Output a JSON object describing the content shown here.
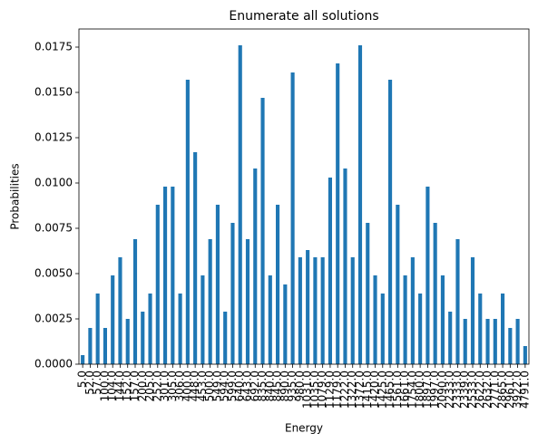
{
  "chart_data": {
    "type": "bar",
    "title": "Enumerate all solutions",
    "xlabel": "Energy",
    "ylabel": "Probabilities",
    "categories": [
      "5.0",
      "52.0",
      "57.0",
      "100.0",
      "104.0",
      "144.0",
      "152.0",
      "157.0",
      "200.0",
      "205.0",
      "252.0",
      "301.0",
      "305.0",
      "306.0",
      "400.0",
      "448.0",
      "453.0",
      "500.0",
      "549.0",
      "594.0",
      "599.0",
      "640.0",
      "643.0",
      "692.0",
      "835.0",
      "840.0",
      "845.0",
      "890.0",
      "935.0",
      "980.0",
      "1031.0",
      "1035.0",
      "1079.0",
      "1129.0",
      "1179.0",
      "1222.0",
      "1322.0",
      "1372.0",
      "1415.0",
      "1420.0",
      "1425.0",
      "1465.0",
      "1561.0",
      "1661.0",
      "1754.0",
      "1800.0",
      "1897.0",
      "1997.0",
      "2090.0",
      "2233.0",
      "2333.0",
      "2339.0",
      "2533.0",
      "2622.0",
      "2632.0",
      "2771.0",
      "2865.0",
      "2961.0",
      "3922.0",
      "4791.0"
    ],
    "values": [
      0.0005,
      0.002,
      0.0039,
      0.002,
      0.0049,
      0.0059,
      0.0025,
      0.0069,
      0.0029,
      0.0039,
      0.0088,
      0.0098,
      0.0098,
      0.0039,
      0.0157,
      0.0117,
      0.0049,
      0.0069,
      0.0088,
      0.0029,
      0.0078,
      0.0176,
      0.0069,
      0.0108,
      0.0147,
      0.0049,
      0.0088,
      0.0044,
      0.0161,
      0.0059,
      0.0063,
      0.0059,
      0.0059,
      0.0103,
      0.0166,
      0.0108,
      0.0059,
      0.0176,
      0.0078,
      0.0049,
      0.0039,
      0.0157,
      0.0088,
      0.0049,
      0.0059,
      0.0039,
      0.0098,
      0.0078,
      0.0049,
      0.0029,
      0.0069,
      0.0025,
      0.0059,
      0.0039,
      0.0025,
      0.0025,
      0.0039,
      0.002,
      0.0025,
      0.001
    ],
    "color": "#1f77b4",
    "ylim": [
      0,
      0.0185
    ],
    "yticks": [
      {
        "value": 0,
        "label": "0.0000"
      },
      {
        "value": 0.0025,
        "label": "0.0025"
      },
      {
        "value": 0.005,
        "label": "0.0050"
      },
      {
        "value": 0.0075,
        "label": "0.0075"
      },
      {
        "value": 0.01,
        "label": "0.0100"
      },
      {
        "value": 0.0125,
        "label": "0.0125"
      },
      {
        "value": 0.015,
        "label": "0.0150"
      },
      {
        "value": 0.0175,
        "label": "0.0175"
      }
    ],
    "grid": false
  }
}
